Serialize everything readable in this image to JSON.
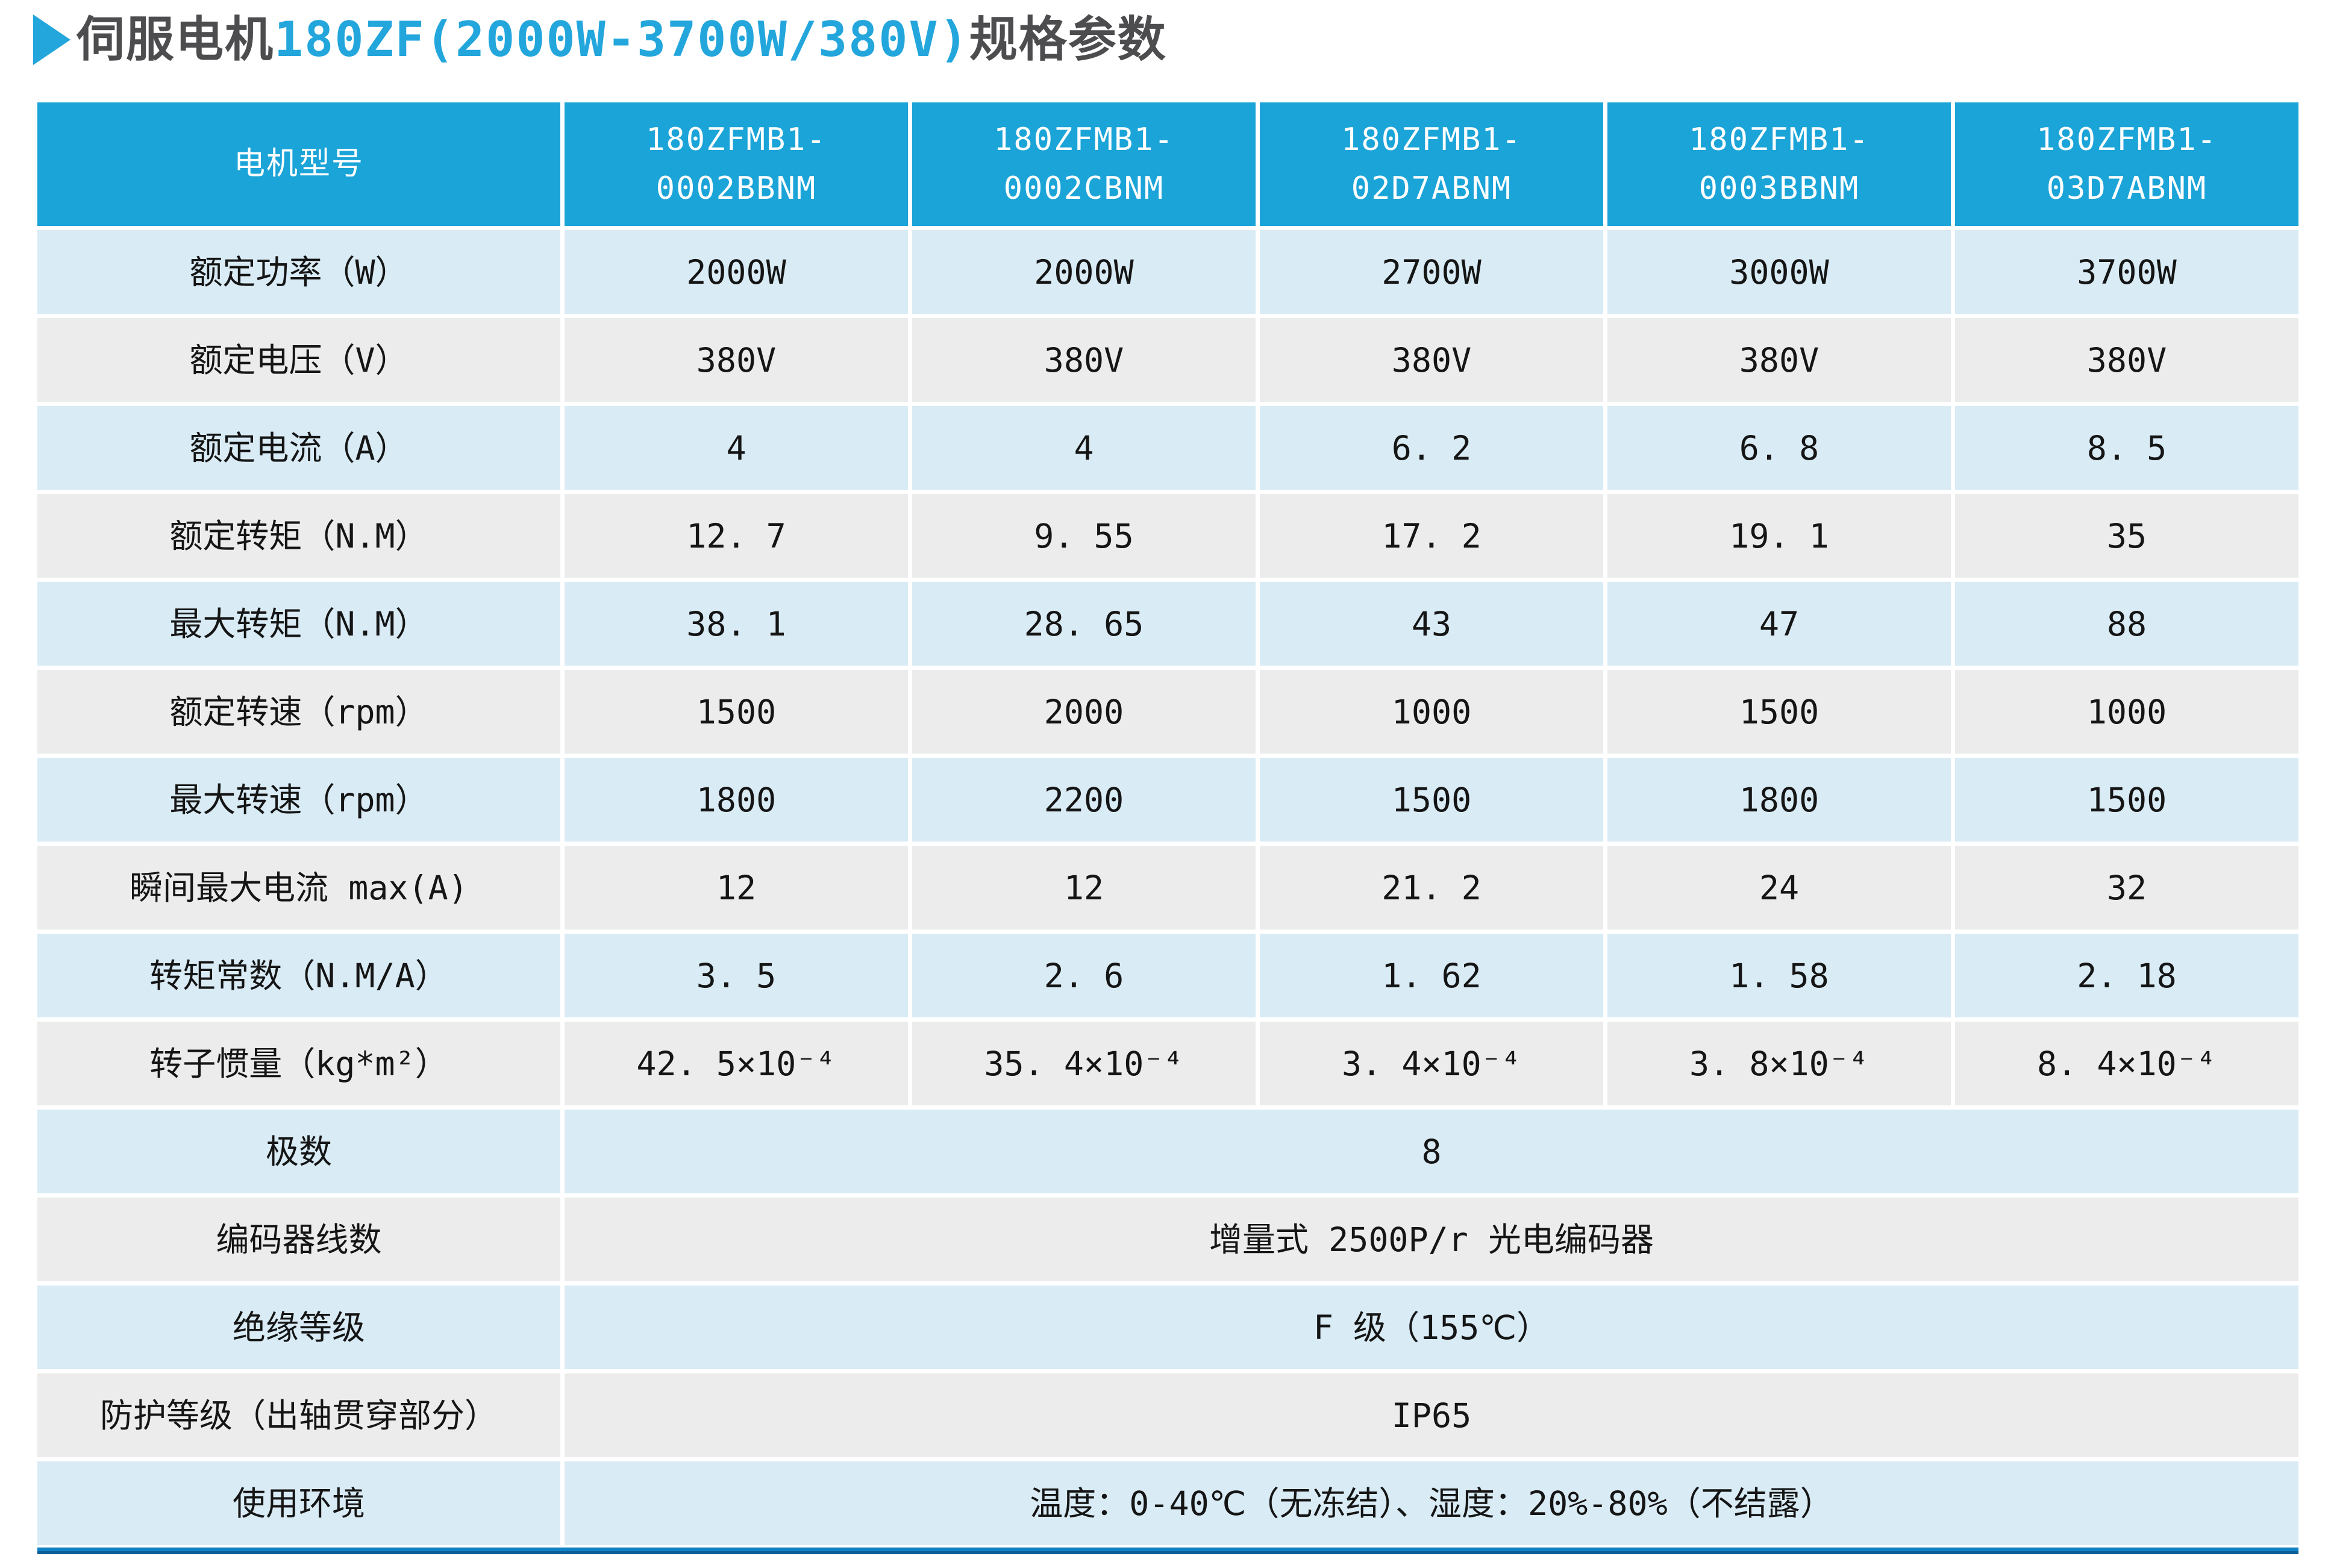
{
  "title": {
    "arrow_icon": "▶",
    "prefix": "伺服电机",
    "highlight": "180ZF(2000W-3700W/380V)",
    "suffix": "规格参数"
  },
  "colors": {
    "header_bg": "#1aa4d8",
    "row_blue": "#d9ebf5",
    "row_gray": "#ececec",
    "title_blue": "#22a6dc",
    "title_gray": "#4d4d4f",
    "text_dark": "#151515",
    "bar_blue": "#0f82c5",
    "bar_edge": "#0a5f98",
    "page_bg": "#ffffff"
  },
  "table": {
    "header": {
      "label": "电机型号",
      "models": [
        "180ZFMB1-\n0002BBNM",
        "180ZFMB1-\n0002CBNM",
        "180ZFMB1-\n02D7ABNM",
        "180ZFMB1-\n0003BBNM",
        "180ZFMB1-\n03D7ABNM"
      ]
    },
    "rows": [
      {
        "label": "额定功率（W）",
        "values": [
          "2000W",
          "2000W",
          "2700W",
          "3000W",
          "3700W"
        ]
      },
      {
        "label": "额定电压（V）",
        "values": [
          "380V",
          "380V",
          "380V",
          "380V",
          "380V"
        ]
      },
      {
        "label": "额定电流（A）",
        "values": [
          "4",
          "4",
          "6. 2",
          "6. 8",
          "8. 5"
        ]
      },
      {
        "label": "额定转矩（N.M）",
        "values": [
          "12. 7",
          "9. 55",
          "17. 2",
          "19. 1",
          "35"
        ]
      },
      {
        "label": "最大转矩（N.M）",
        "values": [
          "38. 1",
          "28. 65",
          "43",
          "47",
          "88"
        ]
      },
      {
        "label": "额定转速（rpm）",
        "values": [
          "1500",
          "2000",
          "1000",
          "1500",
          "1000"
        ]
      },
      {
        "label": "最大转速（rpm）",
        "values": [
          "1800",
          "2200",
          "1500",
          "1800",
          "1500"
        ]
      },
      {
        "label": "瞬间最大电流 max(A)",
        "values": [
          "12",
          "12",
          "21. 2",
          "24",
          "32"
        ]
      },
      {
        "label": "转矩常数（N.M/A）",
        "values": [
          "3. 5",
          "2. 6",
          "1. 62",
          "1. 58",
          "2. 18"
        ]
      },
      {
        "label": "转子惯量（kg*m²）",
        "values": [
          "42. 5×10⁻⁴",
          "35. 4×10⁻⁴",
          "3. 4×10⁻⁴",
          "3. 8×10⁻⁴",
          "8. 4×10⁻⁴"
        ]
      }
    ],
    "merged_rows": [
      {
        "label": "极数",
        "value": "8"
      },
      {
        "label": "编码器线数",
        "value": "增量式 2500P/r 光电编码器"
      },
      {
        "label": "绝缘等级",
        "value": "F 级（155℃）"
      },
      {
        "label": "防护等级（出轴贯穿部分）",
        "value": "IP65"
      },
      {
        "label": "使用环境",
        "value": "温度：0-40℃（无冻结）、湿度：20%-80%（不结露）"
      }
    ]
  }
}
